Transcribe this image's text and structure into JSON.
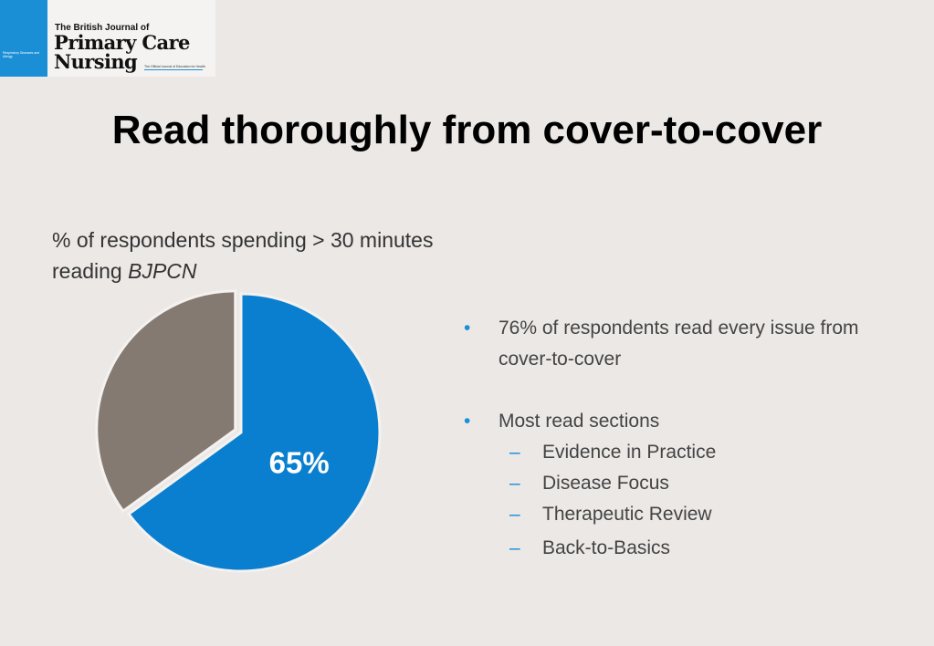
{
  "logo": {
    "sidebar_text": "Respiratory Diseases and Allergy",
    "line1": "The British Journal of",
    "line2": "Primary Care",
    "line3": "Nursing",
    "tagline": "The Official Journal of Education for Health"
  },
  "slide": {
    "title": "Read thoroughly from cover-to-cover",
    "subtitle_main": "% of respondents spending > 30 minutes reading ",
    "subtitle_italic": "BJPCN"
  },
  "chart_data": {
    "type": "pie",
    "slices": [
      {
        "value": 65,
        "label": "65%",
        "color": "#0a7fcf"
      },
      {
        "value": 35,
        "label": "",
        "color": "#857a72"
      }
    ]
  },
  "bullets": {
    "items": [
      {
        "text": "76% of respondents read every issue from cover-to-cover"
      },
      {
        "text": "Most read sections"
      }
    ],
    "sub_items": [
      "Evidence in Practice",
      "Disease Focus",
      "Therapeutic Review",
      "Back-to-Basics"
    ]
  },
  "colors": {
    "accent": "#1a8fd6",
    "background": "#ebe8e6"
  }
}
